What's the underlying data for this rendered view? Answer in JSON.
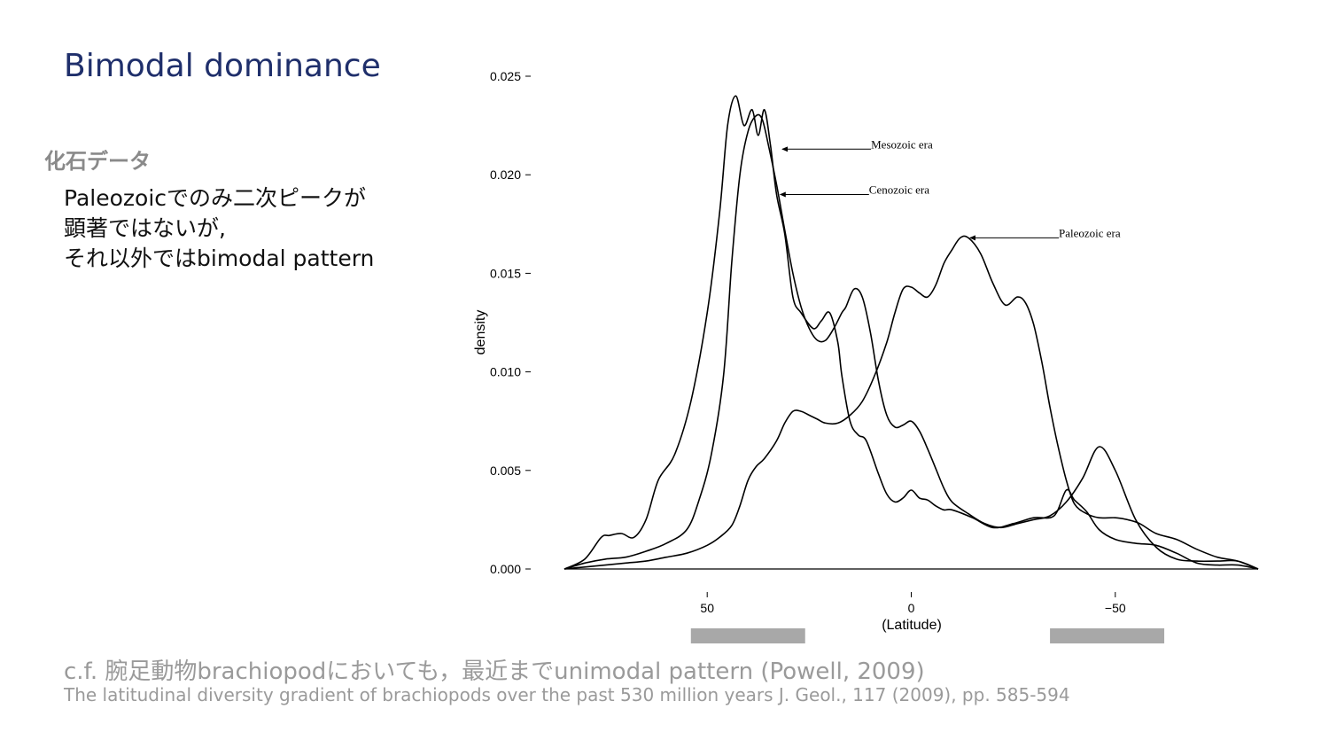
{
  "slide": {
    "title": "Bimodal dominance",
    "subheading": "化石データ",
    "body_lines": [
      "Paleozoicでのみ二次ピークが",
      "顕著ではないが,",
      "それ以外ではbimodal pattern"
    ],
    "note": "c.f. 腕足動物brachiopodにおいても，最近までunimodal pattern (Powell, 2009)",
    "citation": "The latitudinal diversity gradient of brachiopods over the past 530 million years J. Geol., 117 (2009), pp. 585-594"
  },
  "colors": {
    "title": "#1f2f6b",
    "grey_text": "#9a9a9a",
    "band": "#a8a8a8",
    "line": "#000000"
  },
  "chart_data": {
    "type": "line",
    "xlabel": "(Latitude)",
    "ylabel": "density",
    "x_direction": "reversed",
    "xlim": [
      85,
      -85
    ],
    "ylim": [
      0,
      0.025
    ],
    "x_ticks": [
      50,
      0,
      -50
    ],
    "x_tick_labels": [
      "50",
      "0",
      "−50"
    ],
    "y_ticks": [
      0.0,
      0.005,
      0.01,
      0.015,
      0.02,
      0.025
    ],
    "y_tick_labels": [
      "0.000",
      "0.005",
      "0.010",
      "0.015",
      "0.020",
      "0.025"
    ],
    "grid": false,
    "highlight_bands": [
      [
        54,
        26
      ],
      [
        -34,
        -62
      ]
    ],
    "series": [
      {
        "name": "Mesozoic era",
        "x": [
          85,
          80,
          76,
          74,
          71,
          68,
          65,
          62,
          58,
          54,
          50,
          47,
          45,
          43,
          41,
          39,
          37.5,
          36,
          34.5,
          33,
          31,
          29,
          27,
          24,
          22,
          20,
          18,
          17,
          15,
          13,
          11,
          8,
          6,
          4,
          2,
          0,
          -2,
          -4,
          -6,
          -8,
          -10,
          -15,
          -20,
          -25,
          -30,
          -35,
          -38,
          -40,
          -43,
          -46,
          -50,
          -55,
          -60,
          -65,
          -70,
          -75,
          -80,
          -85
        ],
        "y": [
          0,
          0.0005,
          0.0016,
          0.0017,
          0.0018,
          0.0016,
          0.0025,
          0.0045,
          0.0058,
          0.0085,
          0.013,
          0.018,
          0.0225,
          0.024,
          0.0225,
          0.0233,
          0.022,
          0.0233,
          0.0215,
          0.019,
          0.017,
          0.0138,
          0.013,
          0.0122,
          0.0126,
          0.013,
          0.0115,
          0.0098,
          0.0075,
          0.0068,
          0.0065,
          0.0048,
          0.0038,
          0.0034,
          0.0036,
          0.004,
          0.0036,
          0.0035,
          0.0032,
          0.003,
          0.003,
          0.0026,
          0.0021,
          0.0023,
          0.0026,
          0.0027,
          0.004,
          0.0035,
          0.0029,
          0.002,
          0.0015,
          0.0013,
          0.0012,
          0.0008,
          0.0003,
          0.0002,
          0.0002,
          0
        ]
      },
      {
        "name": "Cenozoic era",
        "x": [
          85,
          80,
          75,
          70,
          65,
          60,
          55,
          52,
          49,
          46,
          44,
          42,
          40,
          38,
          36.5,
          35,
          33,
          31,
          29,
          27,
          25,
          23,
          21,
          19,
          17,
          16,
          14,
          12,
          10,
          8,
          6,
          4,
          2,
          0,
          -2,
          -4,
          -6,
          -8,
          -10,
          -14,
          -18,
          -22,
          -26,
          -30,
          -34,
          -38,
          -42,
          -46,
          -50,
          -55,
          -60,
          -65,
          -70,
          -75,
          -80,
          -85
        ],
        "y": [
          0,
          0.0003,
          0.0005,
          0.0006,
          0.0009,
          0.0013,
          0.002,
          0.0035,
          0.0058,
          0.0098,
          0.0155,
          0.02,
          0.0222,
          0.023,
          0.0228,
          0.0215,
          0.0195,
          0.0172,
          0.015,
          0.0133,
          0.0122,
          0.0116,
          0.0116,
          0.0122,
          0.013,
          0.0133,
          0.0142,
          0.0138,
          0.012,
          0.0095,
          0.0078,
          0.0072,
          0.0073,
          0.0075,
          0.007,
          0.0061,
          0.0051,
          0.0041,
          0.0034,
          0.0028,
          0.0023,
          0.0021,
          0.0023,
          0.0025,
          0.0027,
          0.0034,
          0.0046,
          0.0062,
          0.005,
          0.0025,
          0.0011,
          0.0005,
          0.0004,
          0.0004,
          0.0004,
          0
        ]
      },
      {
        "name": "Paleozoic era",
        "x": [
          85,
          80,
          75,
          70,
          65,
          60,
          55,
          50,
          47,
          44,
          42,
          40,
          38,
          36,
          33,
          31,
          29,
          27,
          25,
          23,
          21,
          18,
          15,
          12,
          9,
          6,
          4,
          2,
          0,
          -2,
          -4,
          -6,
          -8,
          -10,
          -12,
          -14,
          -17,
          -20,
          -23,
          -26,
          -28,
          -30,
          -32,
          -34,
          -36,
          -38,
          -40,
          -43,
          -46,
          -50,
          -53,
          -56,
          -60,
          -65,
          -70,
          -75,
          -80,
          -85
        ],
        "y": [
          0,
          0.0001,
          0.0002,
          0.0003,
          0.0004,
          0.0006,
          0.0008,
          0.0012,
          0.0016,
          0.0022,
          0.0032,
          0.0045,
          0.0052,
          0.0056,
          0.0065,
          0.0074,
          0.008,
          0.008,
          0.0078,
          0.0076,
          0.0074,
          0.0074,
          0.0078,
          0.0085,
          0.0098,
          0.0115,
          0.013,
          0.0142,
          0.0143,
          0.014,
          0.0138,
          0.0144,
          0.0155,
          0.0162,
          0.0168,
          0.0168,
          0.016,
          0.0145,
          0.0134,
          0.0138,
          0.0135,
          0.0124,
          0.0105,
          0.0082,
          0.0062,
          0.0045,
          0.0033,
          0.0028,
          0.0026,
          0.0026,
          0.0025,
          0.0023,
          0.0018,
          0.0015,
          0.001,
          0.0006,
          0.0004,
          0
        ]
      }
    ],
    "annotations": [
      {
        "text": "Mesozoic era",
        "point": [
          32.0,
          0.0213
        ]
      },
      {
        "text": "Cenozoic era",
        "point": [
          32.5,
          0.019
        ]
      },
      {
        "text": "Paleozoic era",
        "point": [
          -14.0,
          0.0168
        ]
      }
    ]
  }
}
